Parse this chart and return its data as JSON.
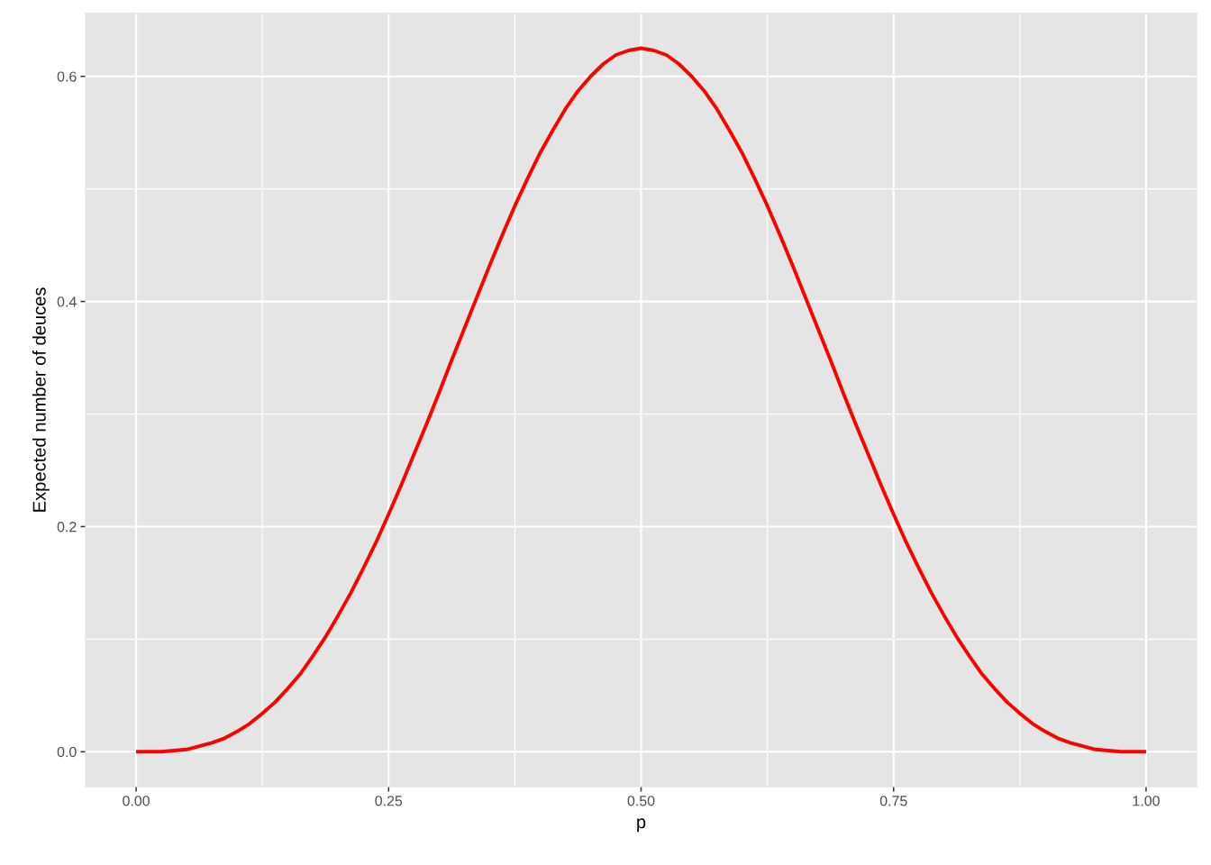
{
  "chart_data": {
    "type": "line",
    "xlabel": "p",
    "ylabel": "Expected number of deuces",
    "x": [
      0,
      0.0125,
      0.025,
      0.0375,
      0.05,
      0.0625,
      0.075,
      0.0875,
      0.1,
      0.1125,
      0.125,
      0.1375,
      0.15,
      0.1625,
      0.175,
      0.1875,
      0.2,
      0.2125,
      0.225,
      0.2375,
      0.25,
      0.2625,
      0.275,
      0.2875,
      0.3,
      0.3125,
      0.325,
      0.3375,
      0.35,
      0.3625,
      0.375,
      0.3875,
      0.4,
      0.4125,
      0.425,
      0.4375,
      0.45,
      0.4625,
      0.475,
      0.4875,
      0.5,
      0.5125,
      0.525,
      0.5375,
      0.55,
      0.5625,
      0.575,
      0.5875,
      0.6,
      0.6125,
      0.625,
      0.6375,
      0.65,
      0.6625,
      0.675,
      0.6875,
      0.7,
      0.7125,
      0.725,
      0.7375,
      0.75,
      0.7625,
      0.775,
      0.7875,
      0.8,
      0.8125,
      0.825,
      0.8375,
      0.85,
      0.8625,
      0.875,
      0.8875,
      0.9,
      0.9125,
      0.925,
      0.9375,
      0.95,
      0.9625,
      0.975,
      0.9875,
      1
    ],
    "series": [
      {
        "color": "#ff0000",
        "values": [
          0,
          0.0,
          0.0,
          0.001,
          0.002,
          0.005,
          0.008,
          0.012,
          0.018,
          0.025,
          0.034,
          0.044,
          0.056,
          0.069,
          0.085,
          0.102,
          0.121,
          0.141,
          0.163,
          0.186,
          0.211,
          0.237,
          0.264,
          0.291,
          0.319,
          0.348,
          0.376,
          0.404,
          0.432,
          0.459,
          0.485,
          0.509,
          0.532,
          0.552,
          0.571,
          0.587,
          0.6,
          0.611,
          0.619,
          0.623,
          0.625,
          0.623,
          0.619,
          0.611,
          0.6,
          0.587,
          0.571,
          0.552,
          0.532,
          0.509,
          0.485,
          0.459,
          0.432,
          0.404,
          0.376,
          0.348,
          0.319,
          0.291,
          0.264,
          0.237,
          0.211,
          0.186,
          0.163,
          0.141,
          0.121,
          0.102,
          0.085,
          0.069,
          0.056,
          0.044,
          0.034,
          0.025,
          0.018,
          0.012,
          0.008,
          0.005,
          0.002,
          0.001,
          0.0,
          0.0,
          0
        ]
      }
    ],
    "xlim": [
      -0.05,
      1.05
    ],
    "ylim": [
      -0.031,
      0.656
    ],
    "xticks": [
      {
        "value": 0,
        "label": "0.00"
      },
      0.25,
      {
        "value": 0.5,
        "label": "0.50"
      },
      0.75,
      {
        "value": 1,
        "label": "1.00"
      }
    ],
    "yticks": [
      {
        "value": 0,
        "label": "0.0"
      },
      0.2,
      0.4,
      0.6
    ],
    "grid": true,
    "marker": "none",
    "line_style": "solid"
  }
}
